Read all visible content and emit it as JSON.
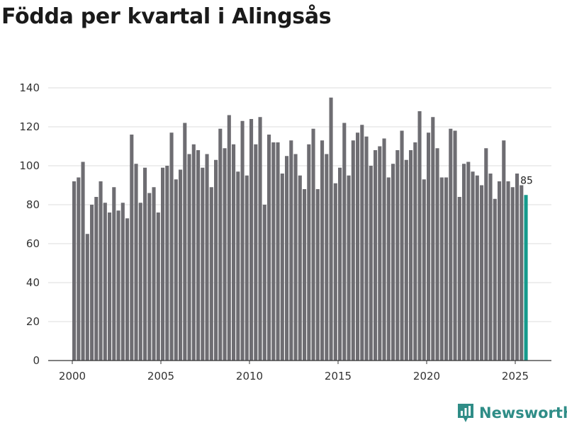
{
  "chart_data": {
    "type": "bar",
    "title": "Födda per kvartal i Alingsås",
    "xlabel": "",
    "ylabel": "",
    "ylim": [
      0,
      140
    ],
    "yticks": [
      0,
      20,
      40,
      60,
      80,
      100,
      120,
      140
    ],
    "xticks": [
      "2000",
      "2005",
      "2010",
      "2015",
      "2020",
      "2025"
    ],
    "grid": true,
    "start_year": 2000,
    "periods": [
      "2000Q1",
      "2000Q2",
      "2000Q3",
      "2000Q4",
      "2001Q1",
      "2001Q2",
      "2001Q3",
      "2001Q4",
      "2002Q1",
      "2002Q2",
      "2002Q3",
      "2002Q4",
      "2003Q1",
      "2003Q2",
      "2003Q3",
      "2003Q4",
      "2004Q1",
      "2004Q2",
      "2004Q3",
      "2004Q4",
      "2005Q1",
      "2005Q2",
      "2005Q3",
      "2005Q4",
      "2006Q1",
      "2006Q2",
      "2006Q3",
      "2006Q4",
      "2007Q1",
      "2007Q2",
      "2007Q3",
      "2007Q4",
      "2008Q1",
      "2008Q2",
      "2008Q3",
      "2008Q4",
      "2009Q1",
      "2009Q2",
      "2009Q3",
      "2009Q4",
      "2010Q1",
      "2010Q2",
      "2010Q3",
      "2010Q4",
      "2011Q1",
      "2011Q2",
      "2011Q3",
      "2011Q4",
      "2012Q1",
      "2012Q2",
      "2012Q3",
      "2012Q4",
      "2013Q1",
      "2013Q2",
      "2013Q3",
      "2013Q4",
      "2014Q1",
      "2014Q2",
      "2014Q3",
      "2014Q4",
      "2015Q1",
      "2015Q2",
      "2015Q3",
      "2015Q4",
      "2016Q1",
      "2016Q2",
      "2016Q3",
      "2016Q4",
      "2017Q1",
      "2017Q2",
      "2017Q3",
      "2017Q4",
      "2018Q1",
      "2018Q2",
      "2018Q3",
      "2018Q4",
      "2019Q1",
      "2019Q2",
      "2019Q3",
      "2019Q4",
      "2020Q1",
      "2020Q2",
      "2020Q3",
      "2020Q4",
      "2021Q1",
      "2021Q2",
      "2021Q3",
      "2021Q4",
      "2022Q1",
      "2022Q2",
      "2022Q3",
      "2022Q4",
      "2023Q1",
      "2023Q2",
      "2023Q3",
      "2023Q4",
      "2024Q1",
      "2024Q2",
      "2024Q3",
      "2024Q4",
      "2025Q1",
      "2025Q2",
      "2025Q3"
    ],
    "values": [
      92,
      94,
      102,
      65,
      80,
      84,
      92,
      81,
      76,
      89,
      77,
      81,
      73,
      116,
      101,
      81,
      99,
      86,
      89,
      76,
      99,
      100,
      117,
      93,
      98,
      122,
      106,
      111,
      108,
      99,
      106,
      89,
      103,
      119,
      109,
      126,
      111,
      97,
      123,
      95,
      124,
      111,
      125,
      80,
      116,
      112,
      112,
      96,
      105,
      113,
      106,
      95,
      88,
      111,
      119,
      88,
      113,
      106,
      135,
      91,
      99,
      122,
      95,
      113,
      117,
      121,
      115,
      100,
      108,
      110,
      114,
      94,
      101,
      108,
      118,
      103,
      108,
      112,
      128,
      93,
      117,
      125,
      109,
      94,
      94,
      119,
      118,
      84,
      101,
      102,
      97,
      95,
      90,
      109,
      96,
      83,
      92,
      113,
      92,
      89,
      96,
      90,
      85
    ],
    "highlight_index": 102,
    "highlight_label": "85",
    "bar_color": "#6e6d72",
    "highlight_color": "#159a8c",
    "grid_color": "#dcdcdc",
    "axis_color": "#333333"
  },
  "brand": {
    "name": "Newsworthy",
    "color": "#2f8d87",
    "icon": "newsworthy-logo-icon"
  }
}
